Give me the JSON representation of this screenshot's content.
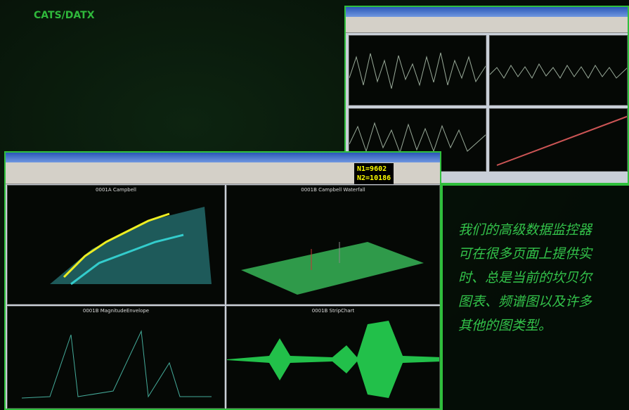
{
  "header": {
    "subtitle": "CATS/DATX"
  },
  "front_window": {
    "status": [
      "N1=9602",
      "N2=10186"
    ],
    "panels": [
      "0001A Campbell",
      "0001B Campbell Waterfall",
      "0001B MagnitudeEnvelope",
      "0001B StripChart"
    ]
  },
  "caption": {
    "lines": [
      "我们的高级数据监控器",
      "可在很多页面上提供实",
      "时、总是当前的坎贝尔",
      "图表、频谱图以及许多",
      "其他的图类型。"
    ]
  }
}
